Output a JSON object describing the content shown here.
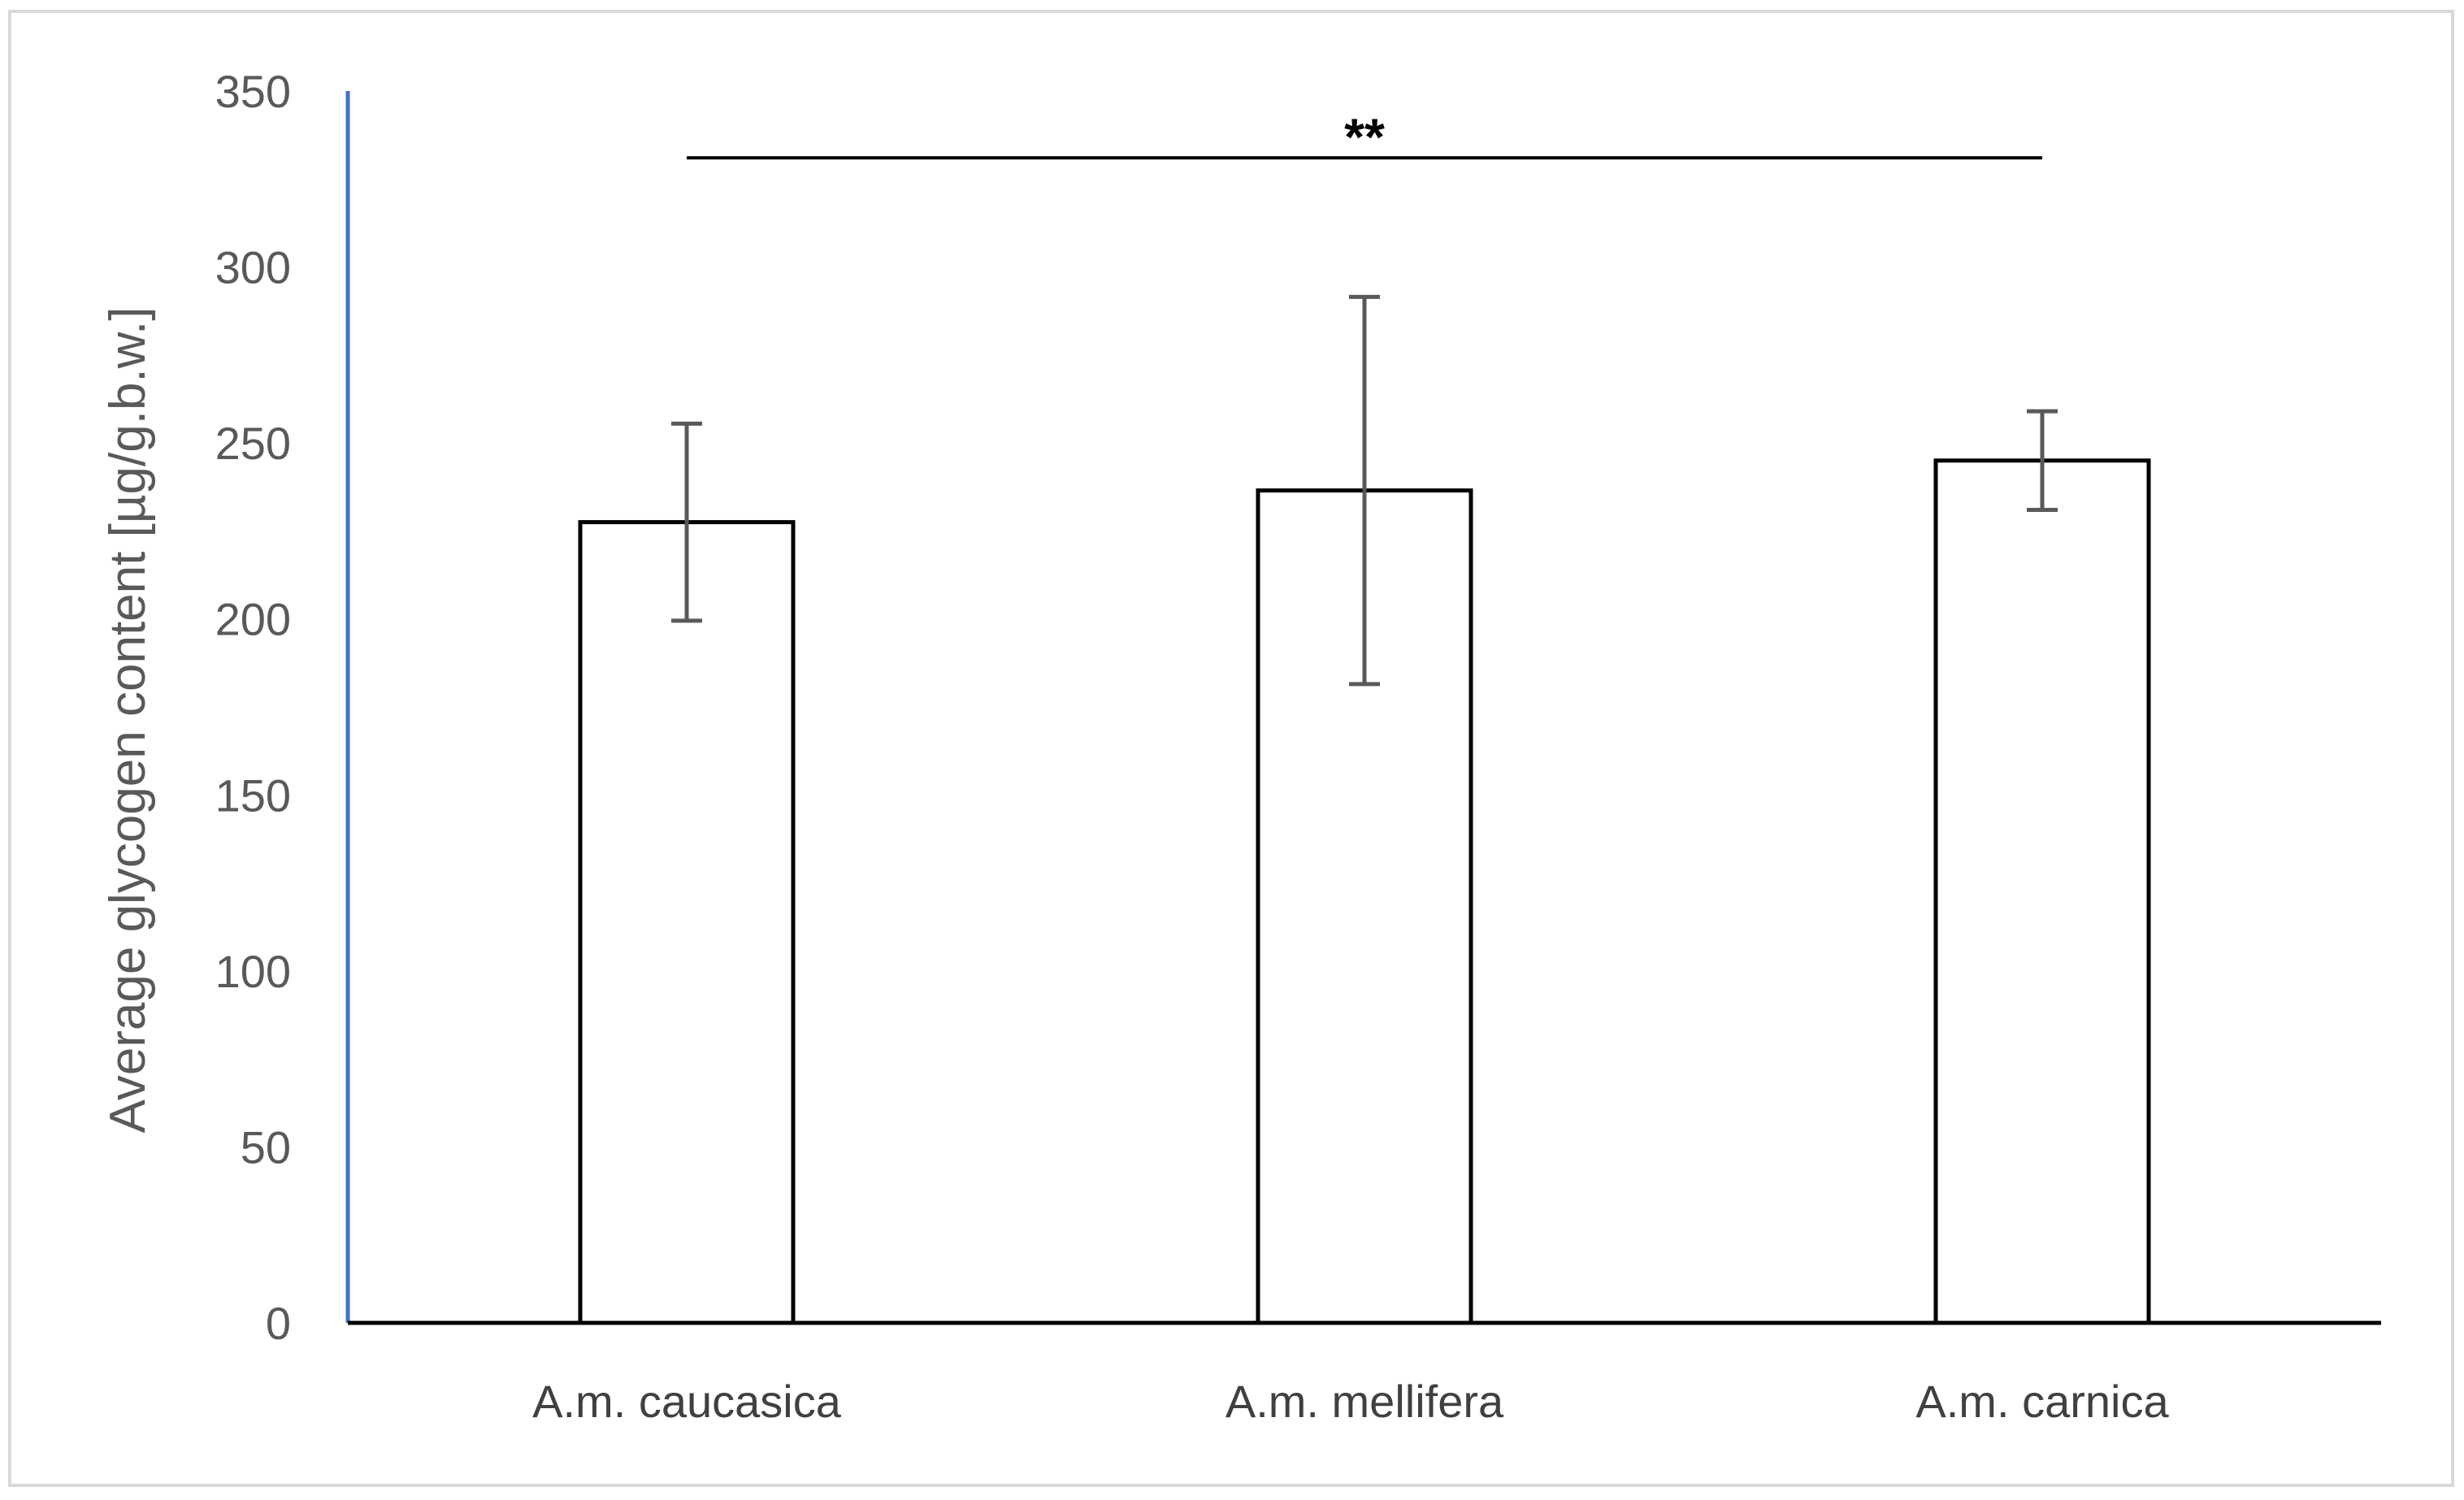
{
  "chart_data": {
    "type": "bar",
    "title": "",
    "xlabel": "",
    "ylabel": "Average glycogen content [µg/g.b.w.]",
    "categories": [
      "A.m. caucasica",
      "A.m. mellifera",
      "A.m. carnica"
    ],
    "values": [
      227.5,
      236.5,
      245
    ],
    "error_low": [
      199.5,
      181.5,
      231
    ],
    "error_high": [
      255.5,
      291.5,
      259
    ],
    "ylim": [
      0,
      350
    ],
    "yticks": [
      0,
      50,
      100,
      150,
      200,
      250,
      300,
      350
    ],
    "grid": false,
    "legend": "none",
    "annotation": {
      "text": "**",
      "from_category": 0,
      "to_category": 2,
      "y": 331
    },
    "colors": {
      "bar_fill": "#ffffff",
      "bar_stroke": "#000000",
      "error_bar": "#595959",
      "y_axis": "#4472c4",
      "x_axis": "#000000",
      "frame": "#d9d9d9"
    }
  }
}
